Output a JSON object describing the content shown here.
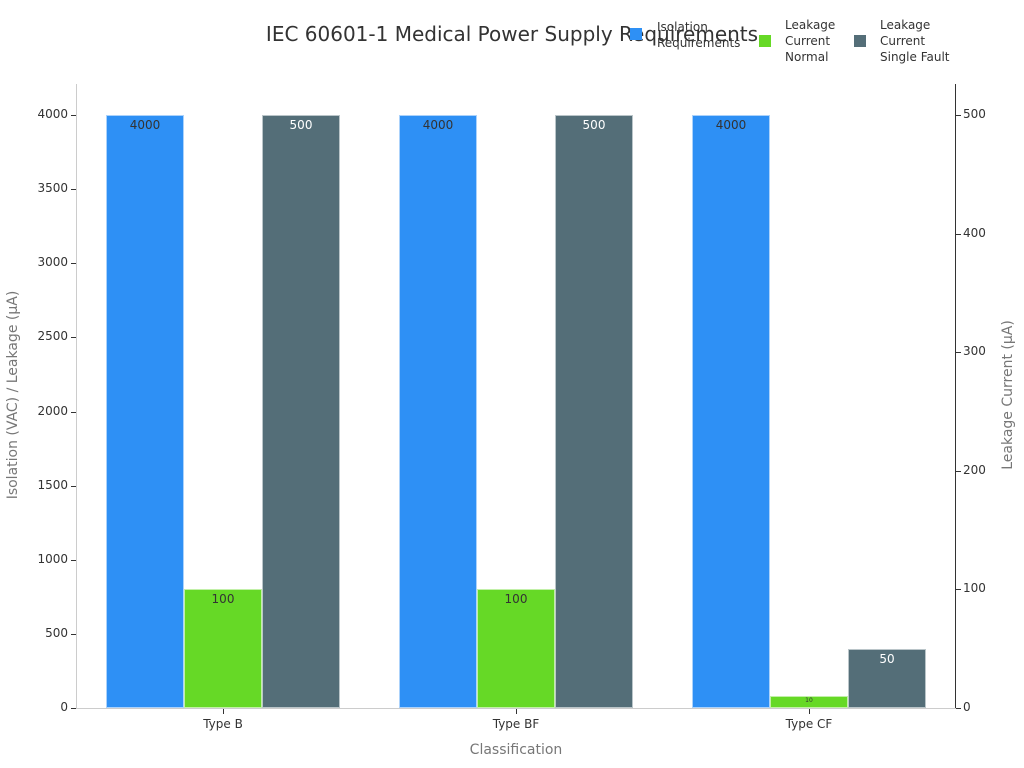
{
  "chart_data": {
    "type": "bar",
    "title": "IEC 60601-1 Medical Power Supply Requirements",
    "xlabel": "Classification",
    "ylabel": "Isolation (VAC) / Leakage (µA)",
    "y2label": "Leakage Current (µA)",
    "categories": [
      "Type B",
      "Type BF",
      "Type CF"
    ],
    "series": [
      {
        "name": "Isolation Requirements",
        "axis": "left",
        "color": "#2e90f5",
        "values": [
          4000,
          4000,
          4000
        ],
        "labels": [
          "4000",
          "4000",
          "4000"
        ]
      },
      {
        "name": "Leakage Current Normal",
        "axis": "right",
        "color": "#66d926",
        "values": [
          100,
          100,
          10
        ],
        "labels": [
          "100",
          "100",
          "10"
        ]
      },
      {
        "name": "Leakage Current Single Fault",
        "axis": "right",
        "color": "#546e78",
        "values": [
          500,
          500,
          50
        ],
        "labels": [
          "500",
          "500",
          "50"
        ]
      }
    ],
    "ylim": [
      0,
      4200
    ],
    "y2lim": [
      0,
      525
    ],
    "yticks": [
      "0",
      "500",
      "1000",
      "1500",
      "2000",
      "2500",
      "3000",
      "3500",
      "4000"
    ],
    "y2ticks": [
      "0",
      "100",
      "200",
      "300",
      "400",
      "500"
    ],
    "grid": false,
    "legend_position": "top-right"
  },
  "legend": {
    "items": [
      {
        "label_lines": [
          "Isolation",
          "Requirements"
        ],
        "color": "#2e90f5"
      },
      {
        "label_lines": [
          "Leakage",
          "Current",
          "Normal"
        ],
        "color": "#66d926"
      },
      {
        "label_lines": [
          "Leakage",
          "Current",
          "Single Fault"
        ],
        "color": "#546e78"
      }
    ]
  }
}
